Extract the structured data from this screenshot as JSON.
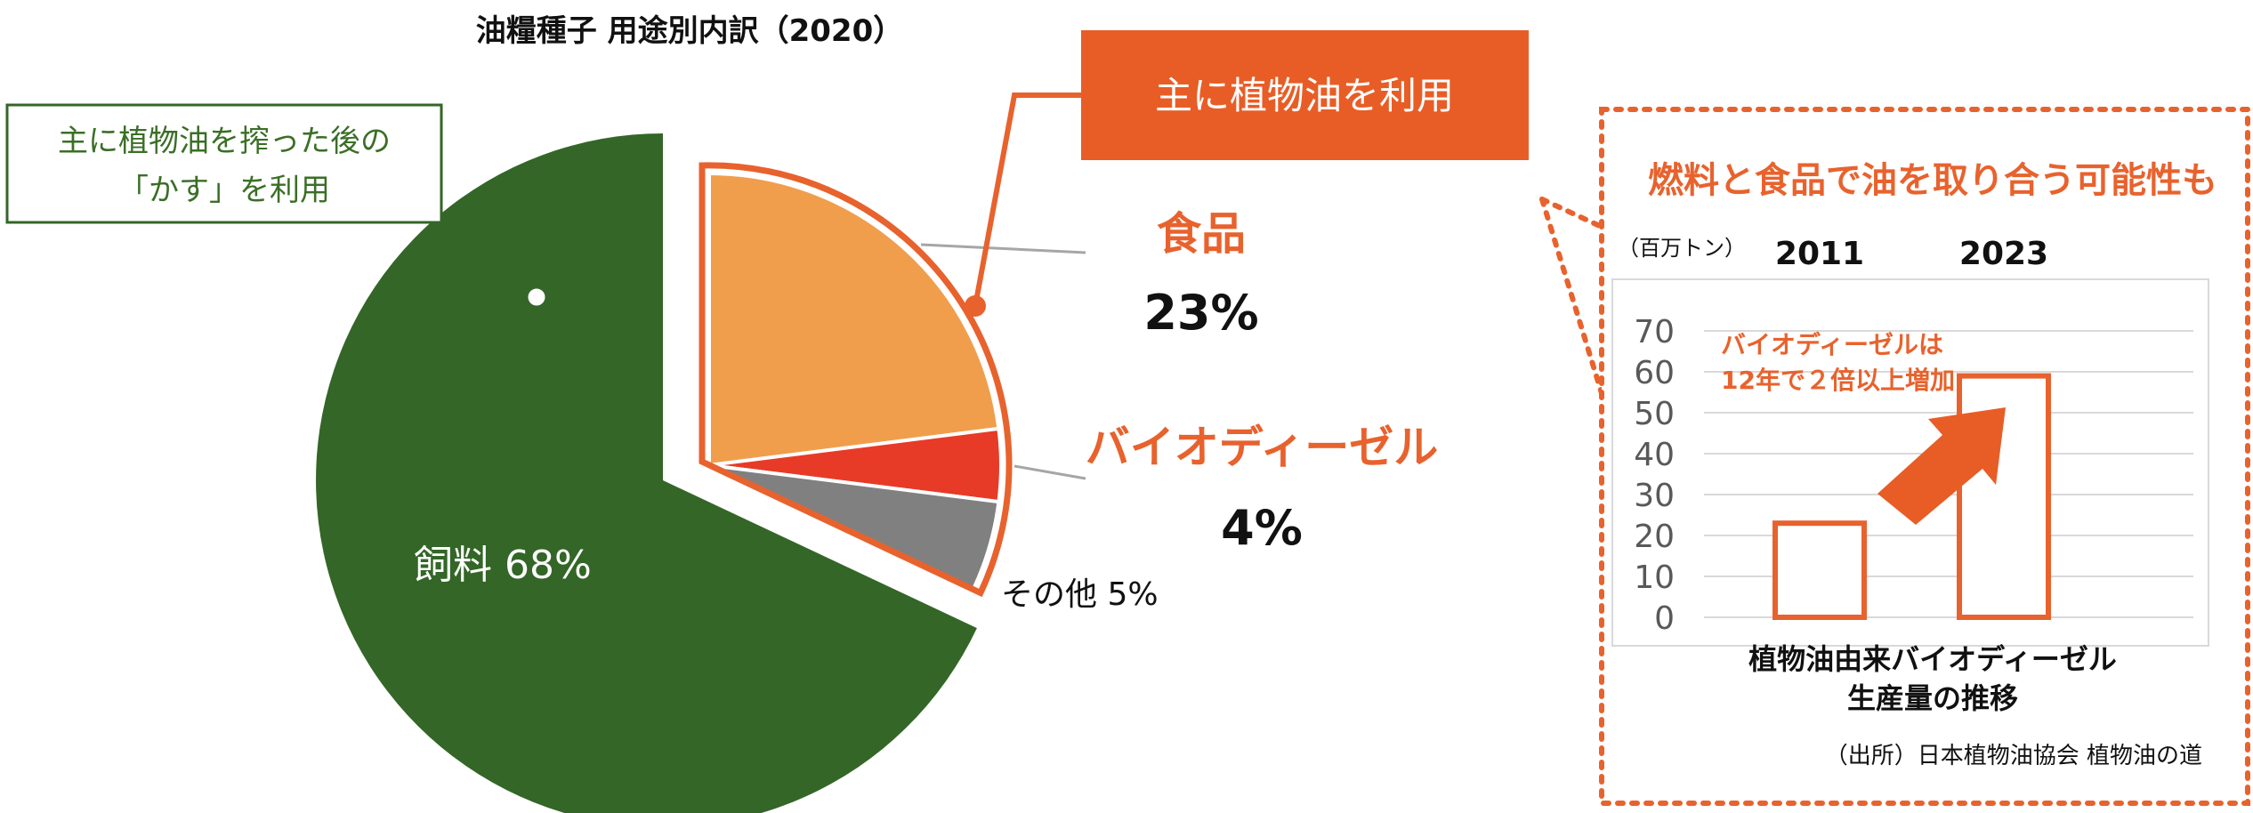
{
  "pie_title": "油糧種子 用途別内訳（2020）",
  "feed_callout": {
    "line1": "主に植物油を搾った後の",
    "line2": "「かす」を利用"
  },
  "oil_callout": "主に植物油を利用",
  "labels": {
    "food_name": "食品",
    "food_pct": "23%",
    "biodiesel_name": "バイオディーゼル",
    "biodiesel_pct": "4%",
    "feed": "飼料 68%",
    "other": "その他 5%"
  },
  "inset": {
    "headline": "燃料と食品で油を取り合う可能性も",
    "unit": "（百万トン）",
    "annotation_line1": "バイオディーゼルは",
    "annotation_line2": "12年で２倍以上増加",
    "caption_line1": "植物油由来バイオディーゼル",
    "caption_line2": "生産量の推移",
    "source": "（出所）日本植物油協会 植物油の道"
  },
  "colors": {
    "feed": "#336627",
    "food": "#F19E4C",
    "biodiesel": "#E73B27",
    "other": "#808080",
    "accent": "#E8622D",
    "callout_fill": "#E85D26",
    "green_text": "#3A6F26"
  },
  "chart_data": [
    {
      "type": "pie",
      "title": "油糧種子 用途別内訳（2020）",
      "slices": [
        {
          "label": "食品",
          "value": 23
        },
        {
          "label": "バイオディーゼル",
          "value": 4
        },
        {
          "label": "その他",
          "value": 5
        },
        {
          "label": "飼料",
          "value": 68
        }
      ]
    },
    {
      "type": "bar",
      "categories": [
        "2011",
        "2023"
      ],
      "values": [
        23,
        59
      ],
      "ylabel": "（百万トン）",
      "ylim": [
        0,
        70
      ],
      "yticks": [
        0,
        10,
        20,
        30,
        40,
        50,
        60,
        70
      ],
      "grid": true,
      "xlabel": "植物油由来バイオディーゼル 生産量の推移"
    }
  ]
}
